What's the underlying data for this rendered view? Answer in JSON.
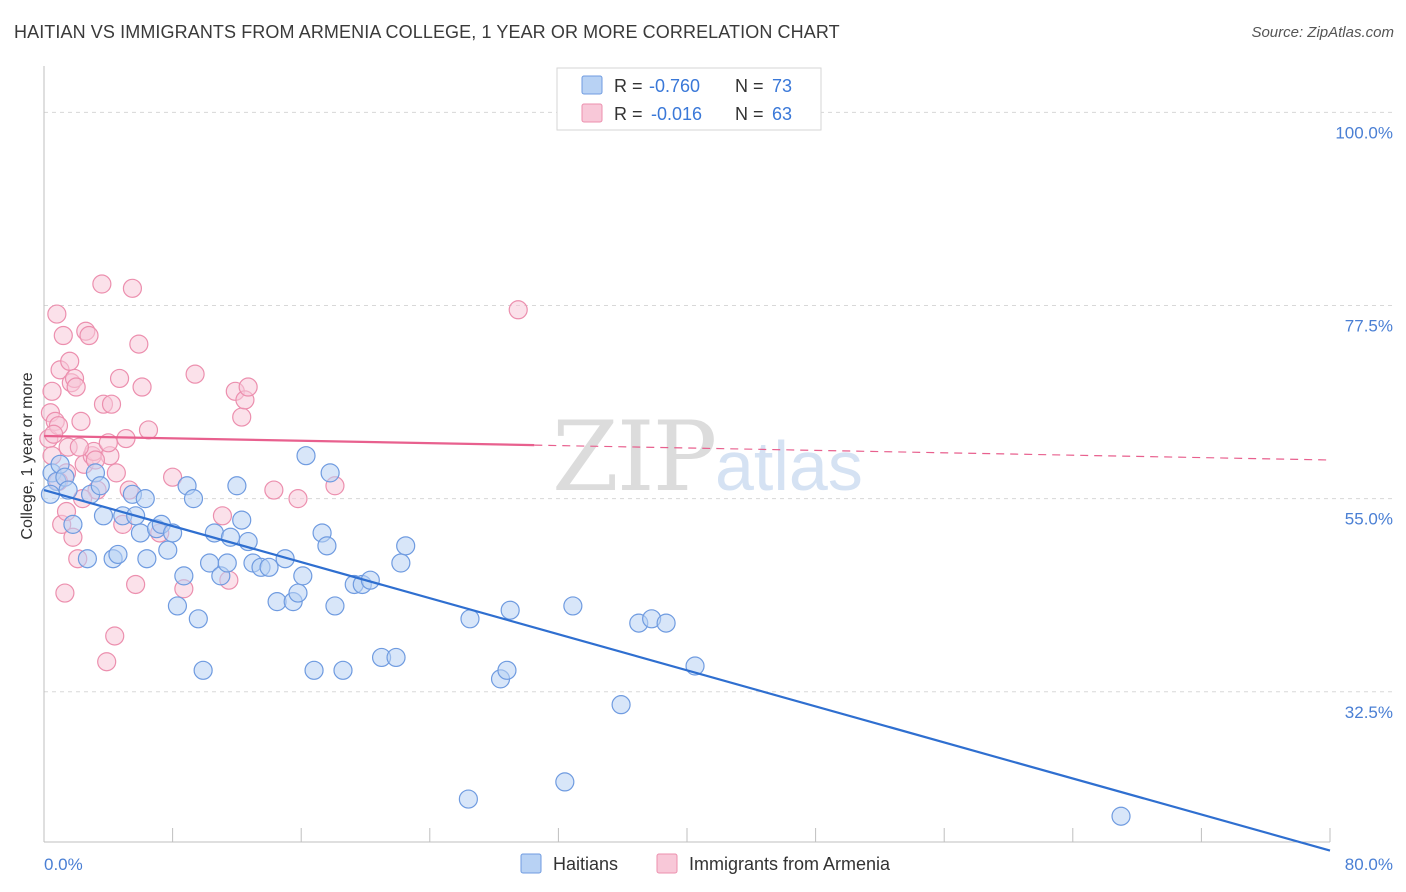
{
  "title": "HAITIAN VS IMMIGRANTS FROM ARMENIA COLLEGE, 1 YEAR OR MORE CORRELATION CHART",
  "source": "Source: ZipAtlas.com",
  "watermark": {
    "zip": "ZIP",
    "atlas": "atlas"
  },
  "colors": {
    "blue_fill": "#b8d2f4",
    "blue_stroke": "#6f9be0",
    "blue_line": "#2f6fd0",
    "pink_fill": "#f8c8d8",
    "pink_stroke": "#ec8fae",
    "pink_line": "#e8608e",
    "grid": "#d8d8d8",
    "axis_text": "#4a7fd4"
  },
  "legend": {
    "rows": [
      {
        "r_label": "R =",
        "r_value": "-0.760",
        "n_label": "N =",
        "n_value": "73"
      },
      {
        "r_label": "R =",
        "r_value": "-0.016",
        "n_label": "N =",
        "n_value": "63"
      }
    ]
  },
  "bottom_legend": [
    "Haitians",
    "Immigrants from Armenia"
  ],
  "chart_data": {
    "type": "scatter",
    "title": "HAITIAN VS IMMIGRANTS FROM ARMENIA COLLEGE, 1 YEAR OR MORE CORRELATION CHART",
    "xlabel": "",
    "ylabel": "College, 1 year or more",
    "xlim": [
      0,
      80
    ],
    "ylim": [
      15,
      104
    ],
    "x_tick_labels": [
      "0.0%",
      "80.0%"
    ],
    "y_ticks": [
      32.5,
      55.0,
      77.5,
      100.0
    ],
    "y_tick_labels": [
      "32.5%",
      "55.0%",
      "77.5%",
      "100.0%"
    ],
    "series": [
      {
        "name": "Haitians",
        "color": "#6f9be0",
        "trend": {
          "x": [
            0,
            80
          ],
          "y": [
            56.0,
            14.0
          ],
          "solid_to": 80
        },
        "points": [
          [
            0.5,
            58
          ],
          [
            0.8,
            57
          ],
          [
            1.0,
            59
          ],
          [
            1.3,
            57.5
          ],
          [
            1.5,
            56
          ],
          [
            1.8,
            52
          ],
          [
            2.7,
            48
          ],
          [
            2.9,
            55.5
          ],
          [
            3.2,
            58
          ],
          [
            3.5,
            56.5
          ],
          [
            3.7,
            53
          ],
          [
            4.3,
            48
          ],
          [
            4.6,
            48.5
          ],
          [
            4.9,
            53
          ],
          [
            5.5,
            55.5
          ],
          [
            5.7,
            53
          ],
          [
            6.0,
            51
          ],
          [
            6.3,
            55
          ],
          [
            6.4,
            48
          ],
          [
            7.0,
            51.5
          ],
          [
            7.3,
            52
          ],
          [
            7.7,
            49
          ],
          [
            8.0,
            51
          ],
          [
            8.3,
            42.5
          ],
          [
            8.7,
            46
          ],
          [
            8.9,
            56.5
          ],
          [
            9.3,
            55
          ],
          [
            9.6,
            41
          ],
          [
            9.9,
            35
          ],
          [
            10.3,
            47.5
          ],
          [
            10.6,
            51
          ],
          [
            11.0,
            46
          ],
          [
            11.4,
            47.5
          ],
          [
            11.6,
            50.5
          ],
          [
            12.0,
            56.5
          ],
          [
            12.3,
            52.5
          ],
          [
            12.7,
            50
          ],
          [
            13.0,
            47.5
          ],
          [
            13.5,
            47
          ],
          [
            14.0,
            47
          ],
          [
            14.5,
            43
          ],
          [
            15.0,
            48
          ],
          [
            15.5,
            43
          ],
          [
            15.8,
            44
          ],
          [
            16.1,
            46
          ],
          [
            16.3,
            60
          ],
          [
            16.8,
            35
          ],
          [
            17.3,
            51
          ],
          [
            17.6,
            49.5
          ],
          [
            17.8,
            58
          ],
          [
            18.1,
            42.5
          ],
          [
            18.6,
            35
          ],
          [
            19.3,
            45
          ],
          [
            19.8,
            45
          ],
          [
            20.3,
            45.5
          ],
          [
            21.0,
            36.5
          ],
          [
            21.9,
            36.5
          ],
          [
            22.2,
            47.5
          ],
          [
            22.5,
            49.5
          ],
          [
            26.5,
            41
          ],
          [
            26.4,
            20
          ],
          [
            28.4,
            34
          ],
          [
            28.8,
            35
          ],
          [
            29.0,
            42
          ],
          [
            32.4,
            22
          ],
          [
            32.9,
            42.5
          ],
          [
            35.9,
            31
          ],
          [
            37.0,
            40.5
          ],
          [
            37.8,
            41
          ],
          [
            38.7,
            40.5
          ],
          [
            40.5,
            35.5
          ],
          [
            67.0,
            18
          ],
          [
            0.4,
            55.5
          ]
        ]
      },
      {
        "name": "Immigrants from Armenia",
        "color": "#ec8fae",
        "trend": {
          "x": [
            0,
            80
          ],
          "y": [
            62.3,
            59.5
          ],
          "solid_to": 30.5
        },
        "points": [
          [
            0.3,
            62
          ],
          [
            0.4,
            65
          ],
          [
            0.5,
            67.5
          ],
          [
            0.7,
            64
          ],
          [
            0.8,
            76.5
          ],
          [
            0.9,
            63.5
          ],
          [
            1.0,
            70
          ],
          [
            1.1,
            52
          ],
          [
            1.2,
            74
          ],
          [
            1.4,
            58
          ],
          [
            1.5,
            61
          ],
          [
            1.6,
            71
          ],
          [
            1.7,
            68.5
          ],
          [
            1.9,
            69
          ],
          [
            2.0,
            68
          ],
          [
            2.1,
            48
          ],
          [
            2.3,
            64
          ],
          [
            2.5,
            59
          ],
          [
            2.6,
            74.5
          ],
          [
            2.8,
            74
          ],
          [
            3.0,
            60
          ],
          [
            3.1,
            60.5
          ],
          [
            3.3,
            56
          ],
          [
            3.6,
            80
          ],
          [
            3.7,
            66
          ],
          [
            3.9,
            36
          ],
          [
            4.1,
            60
          ],
          [
            4.2,
            66
          ],
          [
            4.4,
            39
          ],
          [
            4.5,
            58
          ],
          [
            4.7,
            69
          ],
          [
            4.9,
            52
          ],
          [
            5.1,
            62
          ],
          [
            5.3,
            56
          ],
          [
            5.5,
            79.5
          ],
          [
            5.7,
            45
          ],
          [
            5.9,
            73
          ],
          [
            6.1,
            68
          ],
          [
            6.5,
            63
          ],
          [
            7.2,
            51
          ],
          [
            8.0,
            57.5
          ],
          [
            8.7,
            44.5
          ],
          [
            9.4,
            69.5
          ],
          [
            11.1,
            53
          ],
          [
            11.5,
            45.5
          ],
          [
            11.9,
            67.5
          ],
          [
            12.3,
            64.5
          ],
          [
            12.5,
            66.5
          ],
          [
            12.7,
            68
          ],
          [
            14.3,
            56
          ],
          [
            15.8,
            55
          ],
          [
            18.1,
            56.5
          ],
          [
            29.5,
            77
          ],
          [
            0.6,
            62.5
          ],
          [
            1.3,
            44
          ],
          [
            1.8,
            50.5
          ],
          [
            2.4,
            55
          ],
          [
            3.2,
            59.5
          ],
          [
            0.5,
            60
          ],
          [
            0.9,
            57
          ],
          [
            1.4,
            53.5
          ],
          [
            2.2,
            61
          ],
          [
            4.0,
            61.5
          ]
        ]
      }
    ]
  }
}
